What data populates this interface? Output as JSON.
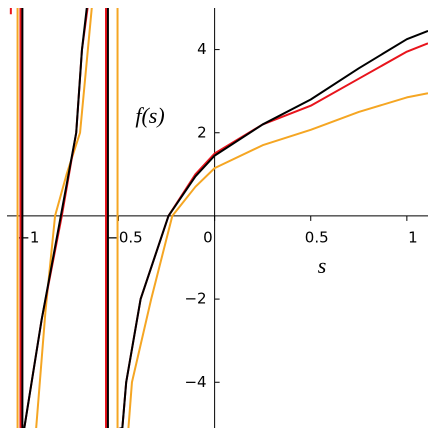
{
  "chart_data": {
    "type": "line",
    "x_label": "s",
    "y_label": "f(s)",
    "xlim": [
      -1.08,
      1.11
    ],
    "ylim": [
      -5.1,
      5.0
    ],
    "xticks": [
      {
        "value": -1,
        "label": "−1"
      },
      {
        "value": -0.5,
        "label": "−0.5"
      },
      0,
      0.5,
      1
    ],
    "yticks": [
      {
        "value": -4,
        "label": "−4"
      },
      {
        "value": -2,
        "label": "−2"
      },
      2,
      4
    ],
    "series": [
      {
        "color": "#f5a623",
        "x": [
          -1.025,
          -1.025,
          -0.98,
          -0.93,
          -0.88,
          -0.83,
          -0.77,
          -0.7,
          -0.635,
          -0.58,
          -0.505,
          -0.505,
          -0.46,
          -0.45,
          -0.43,
          -0.33,
          -0.22,
          -0.1,
          0,
          0.25,
          0.5,
          0.75,
          1.0,
          1.11
        ],
        "values": [
          5.2,
          -5.2,
          null,
          -5.2,
          -2.3,
          0,
          1.0,
          2,
          5.2,
          null,
          5.2,
          -5.2,
          null,
          -5.2,
          -4,
          -2,
          0,
          0.7,
          1.15,
          1.7,
          2.07,
          2.5,
          2.85,
          2.95
        ]
      },
      {
        "color": "#e8141c",
        "x": [
          -1.06,
          -1.06,
          -1.05,
          -1.01,
          -1.01,
          -0.99,
          -0.9,
          -0.795,
          -0.72,
          -0.69,
          -0.655,
          -0.6,
          -0.565,
          -0.565,
          -0.48,
          -0.46,
          -0.385,
          -0.24,
          -0.1,
          0,
          0.25,
          0.5,
          0.75,
          1.0,
          1.11
        ],
        "values": [
          4.85,
          5.2,
          null,
          5.2,
          -5.2,
          -5.1,
          -2.5,
          0,
          2,
          4,
          5.2,
          null,
          5.2,
          -5.2,
          -5.1,
          -4,
          -2,
          0,
          1.0,
          1.5,
          2.2,
          2.65,
          3.3,
          3.95,
          4.15
        ]
      },
      {
        "color": "#000000",
        "x": [
          -1.0,
          -1.0,
          -0.99,
          -0.9,
          -0.8,
          -0.72,
          -0.69,
          -0.66,
          -0.6,
          -0.555,
          -0.555,
          -0.48,
          -0.46,
          -0.385,
          -0.24,
          -0.1,
          0,
          0.25,
          0.5,
          0.75,
          1.0,
          1.11
        ],
        "values": [
          5.2,
          -5.2,
          -5.1,
          -2.5,
          0,
          2,
          4,
          5.2,
          null,
          5.2,
          -5.2,
          -5.1,
          -4,
          -2,
          0,
          0.95,
          1.45,
          2.2,
          2.8,
          3.55,
          4.25,
          4.45
        ]
      }
    ]
  }
}
